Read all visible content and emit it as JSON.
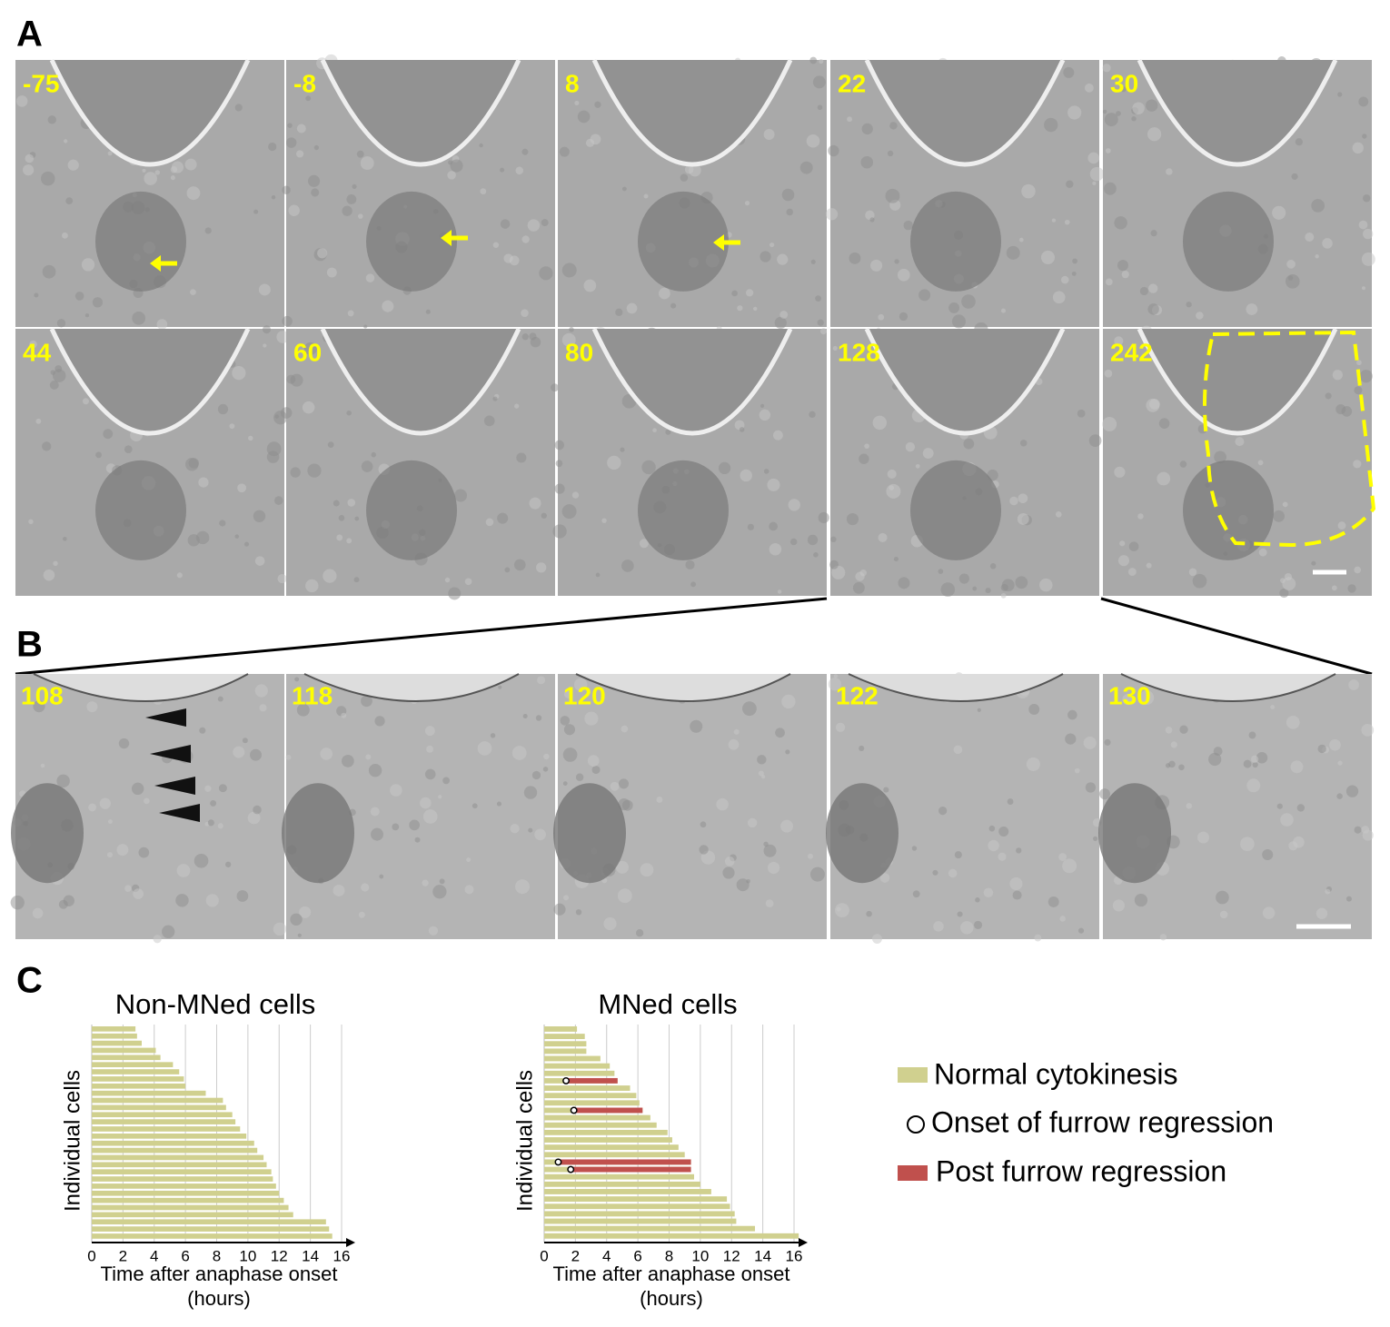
{
  "panel_labels": [
    "A",
    "B",
    "C"
  ],
  "panel_a": {
    "times": [
      -75,
      -8,
      8,
      22,
      30,
      44,
      60,
      80,
      128,
      242
    ]
  },
  "panel_b": {
    "times": [
      108,
      118,
      120,
      122,
      130
    ]
  },
  "chart_data": [
    {
      "type": "bar",
      "title": "Non-MNed cells",
      "ylabel": "Individual cells",
      "xlabel": "Time after anaphase onset",
      "xunit": "(hours)",
      "xlim": [
        0,
        16
      ],
      "xticks": [
        0,
        2,
        4,
        6,
        8,
        10,
        12,
        14,
        16
      ],
      "grid": true,
      "color": "#d0d08f",
      "values": [
        2.8,
        2.9,
        3.2,
        4.1,
        4.4,
        5.2,
        5.6,
        5.9,
        6.0,
        7.3,
        8.4,
        8.6,
        9.0,
        9.2,
        9.5,
        9.9,
        10.4,
        10.6,
        11.0,
        11.2,
        11.5,
        11.6,
        11.8,
        12.0,
        12.3,
        12.6,
        12.9,
        15.0,
        15.2,
        15.4
      ]
    },
    {
      "type": "bar",
      "title": "MNed cells",
      "ylabel": "Individual cells",
      "xlabel": "Time after anaphase onset",
      "xunit": "(hours)",
      "xlim": [
        0,
        16
      ],
      "xticks": [
        0,
        2,
        4,
        6,
        8,
        10,
        12,
        14,
        16
      ],
      "grid": true,
      "color": "#d0d08f",
      "regression_color": "#c0504d",
      "values": [
        2.1,
        2.6,
        2.7,
        2.7,
        3.6,
        4.2,
        4.5,
        4.7,
        5.5,
        5.9,
        6.1,
        6.3,
        6.8,
        7.2,
        7.9,
        8.2,
        8.6,
        9.0,
        9.4,
        9.4,
        9.6,
        10.0,
        10.7,
        11.7,
        11.9,
        12.2,
        12.3,
        13.5,
        16.3
      ],
      "regression_onset": [
        null,
        null,
        null,
        null,
        null,
        null,
        null,
        1.4,
        null,
        null,
        null,
        1.9,
        null,
        null,
        null,
        null,
        null,
        null,
        0.9,
        1.7,
        null,
        null,
        null,
        null,
        null,
        null,
        null,
        null,
        null
      ]
    }
  ],
  "legend": {
    "items": [
      {
        "label": "Normal cytokinesis",
        "color": "#d0d08f"
      },
      {
        "label": "Onset of furrow regression"
      },
      {
        "label": "Post furrow regression",
        "color": "#c0504d"
      }
    ]
  }
}
